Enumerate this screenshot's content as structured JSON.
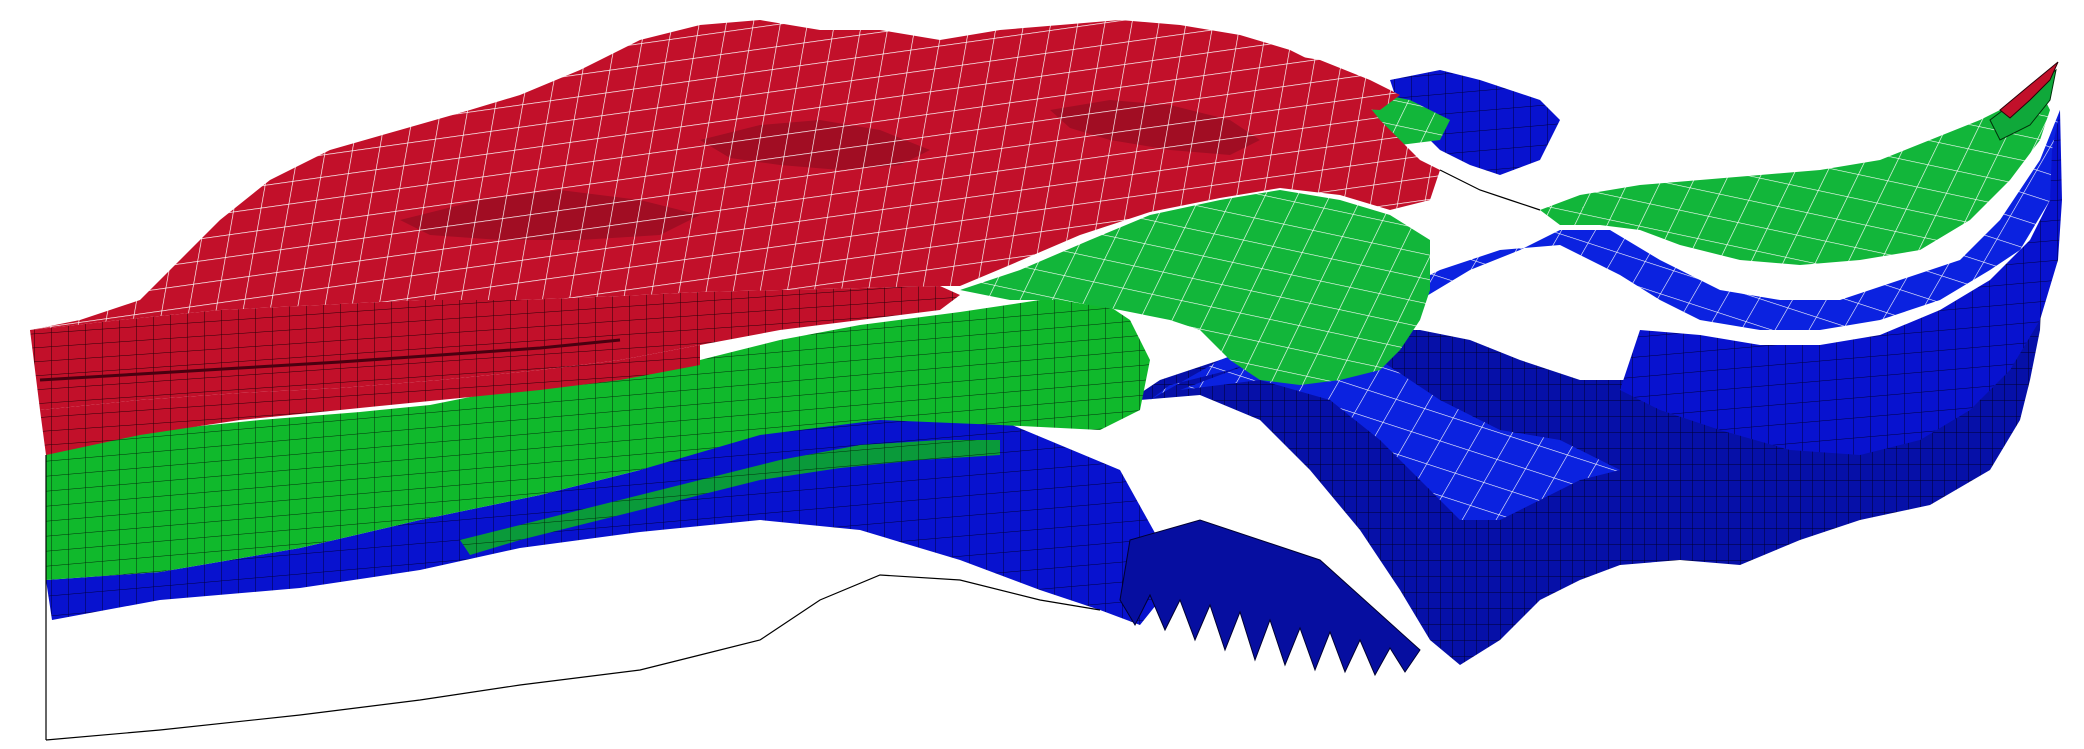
{
  "scene": {
    "background_color": "#ffffff",
    "grid_line_color_top": "#ffffff",
    "grid_line_color_side": "#000000",
    "zones": [
      {
        "name": "red",
        "color": "#c2102a",
        "dark_color": "#8f0a1d"
      },
      {
        "name": "green",
        "color": "#0fbf2e",
        "dark_color": "#088a22"
      },
      {
        "name": "blue",
        "color": "#0a14d0",
        "dark_color": "#05108f"
      }
    ]
  }
}
